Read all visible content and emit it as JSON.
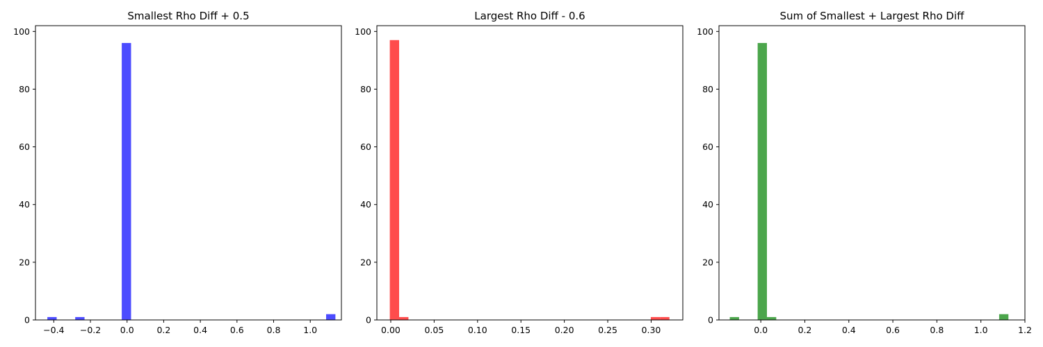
{
  "chart_data": [
    {
      "type": "bar",
      "title": "Smallest Rho Diff + 0.5",
      "xlabel": "",
      "ylabel": "",
      "color": "#0000ff",
      "bar_opacity": 0.7,
      "xlim": [
        -0.5,
        1.17
      ],
      "ylim": [
        0,
        102
      ],
      "xticks": [
        -0.4,
        -0.2,
        0.0,
        0.2,
        0.4,
        0.6,
        0.8,
        1.0
      ],
      "xtick_labels": [
        "−0.4",
        "−0.2",
        "0.0",
        "0.2",
        "0.4",
        "0.6",
        "0.8",
        "1.0"
      ],
      "yticks": [
        0,
        20,
        40,
        60,
        80,
        100
      ],
      "ytick_labels": [
        "0",
        "20",
        "40",
        "60",
        "80",
        "100"
      ],
      "bin_width": 0.0508,
      "bins": [
        {
          "x0": -0.435,
          "count": 1
        },
        {
          "x0": -0.283,
          "count": 1
        },
        {
          "x0": -0.029,
          "count": 96
        },
        {
          "x0": 1.0865,
          "count": 2
        }
      ],
      "grid": false
    },
    {
      "type": "bar",
      "title": "Largest Rho Diff - 0.6",
      "xlabel": "",
      "ylabel": "",
      "color": "#ff0000",
      "bar_opacity": 0.7,
      "xlim": [
        -0.016,
        0.3365
      ],
      "ylim": [
        0,
        102
      ],
      "xticks": [
        0.0,
        0.05,
        0.1,
        0.15,
        0.2,
        0.25,
        0.3
      ],
      "xtick_labels": [
        "0.00",
        "0.05",
        "0.10",
        "0.15",
        "0.20",
        "0.25",
        "0.30"
      ],
      "yticks": [
        0,
        20,
        40,
        60,
        80,
        100
      ],
      "ytick_labels": [
        "0",
        "20",
        "40",
        "60",
        "80",
        "100"
      ],
      "bin_width": 0.01074,
      "bins": [
        {
          "x0": -0.0011,
          "count": 97
        },
        {
          "x0": 0.00964,
          "count": 1
        },
        {
          "x0": 0.2996,
          "count": 1
        },
        {
          "x0": 0.31034,
          "count": 1
        }
      ],
      "grid": false
    },
    {
      "type": "bar",
      "title": "Sum of Smallest + Largest Rho Diff",
      "xlabel": "",
      "ylabel": "",
      "color": "#008000",
      "bar_opacity": 0.7,
      "xlim": [
        -0.19,
        1.2
      ],
      "ylim": [
        0,
        102
      ],
      "xticks": [
        0.0,
        0.2,
        0.4,
        0.6,
        0.8,
        1.0,
        1.2
      ],
      "xtick_labels": [
        "0.0",
        "0.2",
        "0.4",
        "0.6",
        "0.8",
        "1.0",
        "1.2"
      ],
      "yticks": [
        0,
        20,
        40,
        60,
        80,
        100
      ],
      "ytick_labels": [
        "0",
        "20",
        "40",
        "60",
        "80",
        "100"
      ],
      "bin_width": 0.0422,
      "bins": [
        {
          "x0": -0.1409,
          "count": 1
        },
        {
          "x0": -0.0143,
          "count": 96
        },
        {
          "x0": 0.0279,
          "count": 1
        },
        {
          "x0": 1.0829,
          "count": 2
        }
      ],
      "grid": false
    }
  ]
}
